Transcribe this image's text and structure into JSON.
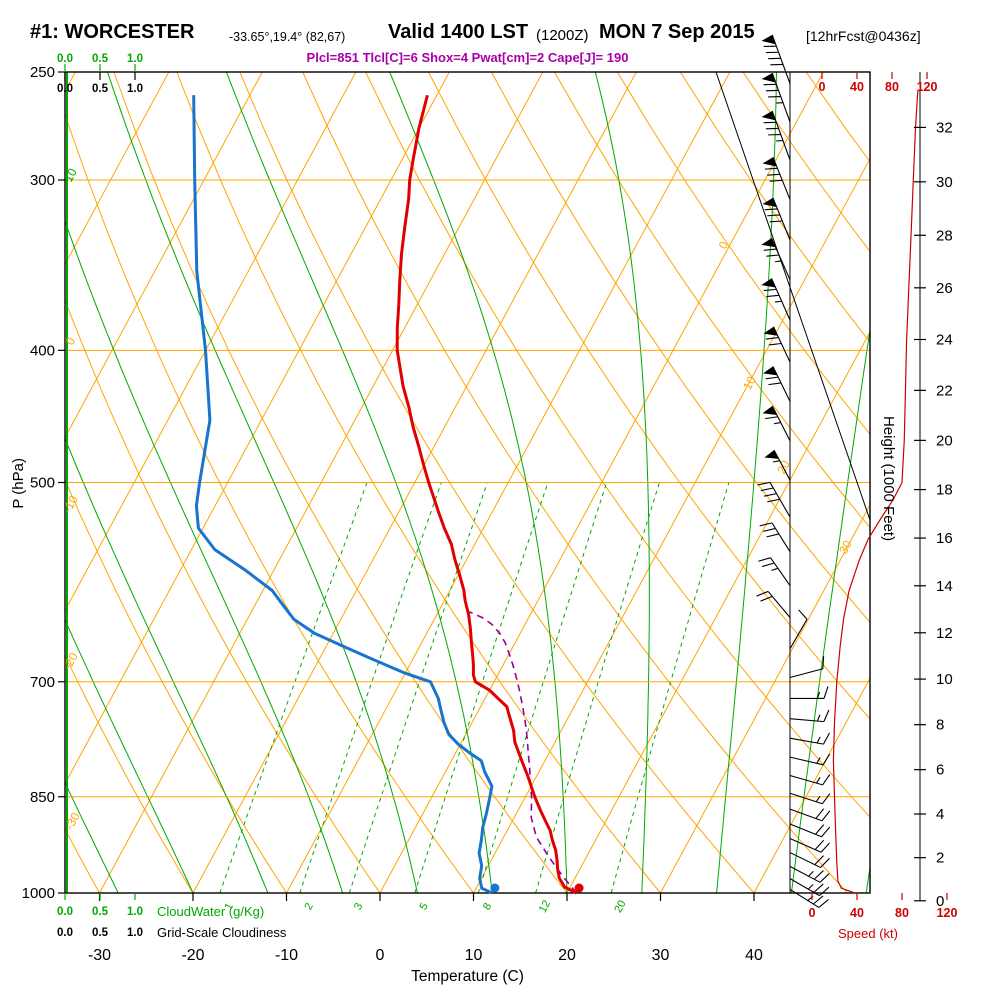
{
  "header": {
    "station": "#1: WORCESTER",
    "coords": "-33.65°,19.4° (82,67)",
    "valid": "Valid 1400 LST",
    "valid_z": "(1200Z)",
    "valid_date": "MON 7 Sep 2015",
    "fcst": "[12hrFcst@0436z]",
    "params": "Plcl=851 Tlcl[C]=6 Shox=4 Pwat[cm]=2 Cape[J]= 190"
  },
  "axes": {
    "pressure": {
      "label": "P (hPa)",
      "ticks": [
        250,
        300,
        400,
        500,
        700,
        850,
        1000
      ]
    },
    "temperature": {
      "label": "Temperature (C)",
      "ticks": [
        -30,
        -20,
        -10,
        0,
        10,
        20,
        30,
        40
      ]
    },
    "height": {
      "label": "Height (1000 Feet)",
      "ticks": [
        0,
        2,
        4,
        6,
        8,
        10,
        12,
        14,
        16,
        18,
        20,
        22,
        24,
        26,
        28,
        30,
        32
      ]
    },
    "speed": {
      "label": "Speed (kt)",
      "ticks": [
        0,
        40,
        80,
        120
      ]
    },
    "cloudwater": {
      "label": "CloudWater (g/Kg)",
      "ticks": [
        "0.0",
        "0.5",
        "1.0"
      ]
    },
    "cloudiness": {
      "label": "Grid-Scale Cloudiness",
      "ticks": [
        "0.0",
        "0.5",
        "1.0"
      ]
    }
  },
  "grid_labels": {
    "mixing_ratio_gkg": [
      "1",
      "2",
      "3",
      "5",
      "8",
      "12",
      "20"
    ],
    "isotherm_right": [
      "0",
      "10",
      "20",
      "30"
    ],
    "left_edge": [
      {
        "text": "10",
        "color": "#00a800"
      },
      {
        "text": "0",
        "color": "#ffa500"
      },
      {
        "text": "-10",
        "color": "#ffa500"
      },
      {
        "text": "-20",
        "color": "#ffa500"
      },
      {
        "text": "-30",
        "color": "#ffa500"
      }
    ]
  },
  "colors": {
    "grid_orange": "#ffa500",
    "grid_green": "#00a800",
    "temperature_red": "#e00000",
    "dewpoint_blue": "#1874cd",
    "parcel_purple": "#990099",
    "speed_red": "#cc0000",
    "params_purple": "#a800a8",
    "black": "#000000"
  },
  "chart_data": {
    "type": "skewt_logp_sounding",
    "pressure_range_hpa": [
      1000,
      250
    ],
    "temperature_axis_c": {
      "min": -33.7,
      "max": 52,
      "skew_dx_per_dy": 0.54
    },
    "isotherm_step_c": 10,
    "dry_adiabat_step_c": 10,
    "moist_adiabats_c": [
      -28,
      -20,
      -12,
      -4,
      4,
      12,
      20,
      28,
      36,
      44,
      52
    ],
    "mixing_ratio_lines_gkg": [
      1,
      2,
      3,
      5,
      8,
      12,
      20
    ],
    "temperature_profile_p_c": [
      [
        1000,
        21
      ],
      [
        990,
        19.4
      ],
      [
        975,
        18.3
      ],
      [
        960,
        17.6
      ],
      [
        945,
        17
      ],
      [
        930,
        16.3
      ],
      [
        915,
        15.4
      ],
      [
        900,
        14.6
      ],
      [
        885,
        13.5
      ],
      [
        870,
        12.4
      ],
      [
        850,
        11
      ],
      [
        835,
        10
      ],
      [
        820,
        9
      ],
      [
        805,
        7.9
      ],
      [
        790,
        6.8
      ],
      [
        775,
        5.7
      ],
      [
        760,
        4.9
      ],
      [
        750,
        4.2
      ],
      [
        740,
        3.5
      ],
      [
        730,
        2.8
      ],
      [
        720,
        1.4
      ],
      [
        710,
        0
      ],
      [
        700,
        -2
      ],
      [
        692,
        -2.6
      ],
      [
        680,
        -3.2
      ],
      [
        668,
        -3.9
      ],
      [
        655,
        -4.7
      ],
      [
        640,
        -5.6
      ],
      [
        625,
        -6.6
      ],
      [
        610,
        -7.8
      ],
      [
        600,
        -8.5
      ],
      [
        585,
        -9.8
      ],
      [
        570,
        -11.2
      ],
      [
        555,
        -12.5
      ],
      [
        540,
        -14.2
      ],
      [
        525,
        -15.8
      ],
      [
        510,
        -17.4
      ],
      [
        500,
        -18.5
      ],
      [
        485,
        -20.1
      ],
      [
        470,
        -21.7
      ],
      [
        455,
        -23.4
      ],
      [
        440,
        -25
      ],
      [
        425,
        -26.8
      ],
      [
        410,
        -28.4
      ],
      [
        400,
        -29.5
      ],
      [
        385,
        -30.8
      ],
      [
        370,
        -32
      ],
      [
        355,
        -33.3
      ],
      [
        340,
        -34.6
      ],
      [
        325,
        -35.8
      ],
      [
        310,
        -37
      ],
      [
        300,
        -38
      ],
      [
        290,
        -38.8
      ],
      [
        275,
        -40
      ],
      [
        260,
        -41
      ]
    ],
    "dewpoint_profile_p_c": [
      [
        1000,
        12
      ],
      [
        992,
        10.6
      ],
      [
        975,
        9.8
      ],
      [
        955,
        9.3
      ],
      [
        935,
        8.3
      ],
      [
        915,
        7.8
      ],
      [
        895,
        7.2
      ],
      [
        875,
        6.8
      ],
      [
        850,
        6.2
      ],
      [
        835,
        5.8
      ],
      [
        815,
        4.2
      ],
      [
        800,
        3.2
      ],
      [
        790,
        1.6
      ],
      [
        778,
        -0.2
      ],
      [
        765,
        -1.8
      ],
      [
        750,
        -3
      ],
      [
        735,
        -4
      ],
      [
        720,
        -5
      ],
      [
        700,
        -6.8
      ],
      [
        690,
        -10
      ],
      [
        675,
        -14
      ],
      [
        660,
        -18
      ],
      [
        645,
        -22
      ],
      [
        630,
        -25
      ],
      [
        615,
        -27
      ],
      [
        600,
        -29
      ],
      [
        580,
        -33
      ],
      [
        560,
        -37.5
      ],
      [
        540,
        -40.5
      ],
      [
        520,
        -42
      ],
      [
        500,
        -43
      ],
      [
        450,
        -45.5
      ],
      [
        400,
        -50
      ],
      [
        350,
        -55.5
      ],
      [
        300,
        -61
      ],
      [
        260,
        -66
      ]
    ],
    "parcel_path_p_c": [
      [
        1000,
        21
      ],
      [
        970,
        18.4
      ],
      [
        940,
        15.9
      ],
      [
        910,
        13.5
      ],
      [
        880,
        11.8
      ],
      [
        851,
        10.7
      ],
      [
        830,
        9.7
      ],
      [
        810,
        8.8
      ],
      [
        790,
        7.8
      ],
      [
        770,
        6.8
      ],
      [
        750,
        5.7
      ],
      [
        730,
        4.5
      ],
      [
        710,
        3.2
      ],
      [
        700,
        2.5
      ],
      [
        685,
        1.4
      ],
      [
        670,
        0.2
      ],
      [
        655,
        -1.1
      ],
      [
        645,
        -2.2
      ],
      [
        635,
        -3.6
      ],
      [
        628,
        -5
      ],
      [
        622,
        -6.7
      ]
    ],
    "wind_speed_profile_p_kt": [
      [
        258,
        94
      ],
      [
        275,
        92
      ],
      [
        300,
        90
      ],
      [
        330,
        88
      ],
      [
        360,
        86
      ],
      [
        395,
        84
      ],
      [
        430,
        83
      ],
      [
        465,
        82
      ],
      [
        500,
        80
      ],
      [
        515,
        72
      ],
      [
        530,
        62
      ],
      [
        550,
        50
      ],
      [
        570,
        42
      ],
      [
        600,
        33
      ],
      [
        630,
        28
      ],
      [
        660,
        25
      ],
      [
        700,
        22
      ],
      [
        750,
        20
      ],
      [
        800,
        19
      ],
      [
        850,
        20
      ],
      [
        900,
        21
      ],
      [
        950,
        22
      ],
      [
        980,
        23
      ],
      [
        992,
        26
      ],
      [
        1000,
        38
      ]
    ],
    "wind_barbs_p_dir_kt": [
      [
        255,
        340,
        90
      ],
      [
        272,
        340,
        85
      ],
      [
        290,
        340,
        85
      ],
      [
        310,
        338,
        80
      ],
      [
        332,
        338,
        80
      ],
      [
        355,
        336,
        75
      ],
      [
        380,
        336,
        75
      ],
      [
        408,
        335,
        70
      ],
      [
        436,
        334,
        70
      ],
      [
        466,
        333,
        65
      ],
      [
        498,
        332,
        55
      ],
      [
        530,
        330,
        40
      ],
      [
        562,
        328,
        30
      ],
      [
        595,
        325,
        25
      ],
      [
        628,
        320,
        20
      ],
      [
        662,
        30,
        10
      ],
      [
        695,
        75,
        10
      ],
      [
        720,
        90,
        15
      ],
      [
        745,
        95,
        15
      ],
      [
        770,
        100,
        15
      ],
      [
        795,
        103,
        15
      ],
      [
        820,
        106,
        18
      ],
      [
        845,
        108,
        18
      ],
      [
        868,
        110,
        20
      ],
      [
        890,
        112,
        20
      ],
      [
        912,
        114,
        22
      ],
      [
        934,
        116,
        22
      ],
      [
        956,
        118,
        25
      ],
      [
        976,
        120,
        25
      ],
      [
        994,
        122,
        25
      ]
    ],
    "cloudwater_profile_gkg": {
      "constant": 0
    },
    "surface_markers": [
      {
        "type": "temperature",
        "p": 991,
        "value_c": 21,
        "color": "#e00000"
      },
      {
        "type": "dewpoint",
        "p": 991,
        "value_c": 12,
        "color": "#1874cd"
      }
    ]
  }
}
